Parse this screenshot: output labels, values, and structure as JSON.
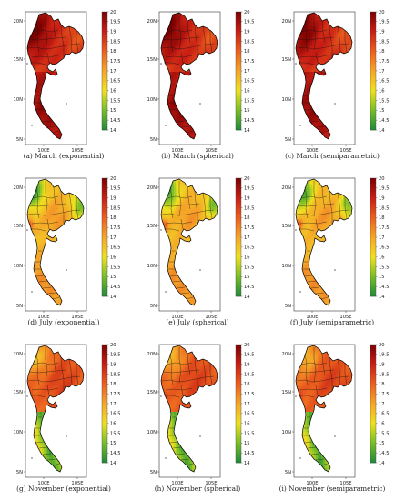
{
  "figure": {
    "panels": [
      {
        "caption": "(a) March (exponential)",
        "month": "march",
        "ticks": [
          "20",
          "19.5",
          "19",
          "18.5",
          "18",
          "17.5",
          "17",
          "16.5",
          "16",
          "15.5",
          "15",
          "14.5",
          "14"
        ]
      },
      {
        "caption": "(b) March (spherical)",
        "month": "march",
        "ticks": [
          "20",
          "19.5",
          "19",
          "18.5",
          "18",
          "17.5",
          "17",
          "16.5",
          "16",
          "15.5",
          "15",
          "14.5",
          "14"
        ]
      },
      {
        "caption": "(c) March (semiparametric)",
        "month": "march",
        "ticks": [
          "20",
          "19.5",
          "19",
          "18.5",
          "18",
          "17.5",
          "17",
          "16.5",
          "16",
          "15.5",
          "15",
          "14.5",
          "14"
        ]
      },
      {
        "caption": "(d) July (exponential)",
        "month": "july",
        "ticks": [
          "20",
          "19.5",
          "19",
          "18.5",
          "18",
          "17.5",
          "17",
          "16.5",
          "16",
          "15.5",
          "15",
          "14.5",
          "14"
        ]
      },
      {
        "caption": "(e) July (spherical)",
        "month": "july",
        "ticks": [
          "20",
          "19.5",
          "19",
          "18.5",
          "18",
          "17.5",
          "17",
          "16.5",
          "16",
          "15.5",
          "15",
          "14.5",
          "14"
        ]
      },
      {
        "caption": "(f) July (semiparametric)",
        "month": "july",
        "ticks": [
          "20",
          "19.5",
          "19",
          "18.5",
          "18",
          "17.5",
          "17",
          "16.5",
          "16",
          "15.5",
          "15",
          "14.5",
          "14"
        ]
      },
      {
        "caption": "(g) November (exponential)",
        "month": "november",
        "ticks": [
          "20",
          "19.5",
          "19",
          "18.5",
          "18",
          "17.5",
          "17",
          "16.5",
          "16",
          "15.5",
          "15",
          "14.5",
          "14"
        ]
      },
      {
        "caption": "(h) November (spherical)",
        "month": "november",
        "ticks": [
          "20",
          "19.5",
          "19",
          "18.5",
          "18",
          "17.5",
          "17",
          "16.5",
          "16",
          "15.5",
          "15",
          "14.5",
          "14"
        ]
      },
      {
        "caption": "(i) November (semiparametric)",
        "month": "november",
        "ticks": [
          "20",
          "19.5",
          "19",
          "18.5",
          "18",
          "17.5",
          "17",
          "16.5",
          "16",
          "15.5",
          "15",
          "14.5",
          "14"
        ]
      }
    ],
    "lat_labels": [
      "20N",
      "15N",
      "10N",
      "5N"
    ],
    "lon_labels": [
      "100E",
      "105E"
    ],
    "colorbar_range": [
      14,
      20
    ],
    "colors": {
      "low": "#1e8a3a",
      "mid": "#f0e020",
      "high": "#7a0000"
    }
  }
}
